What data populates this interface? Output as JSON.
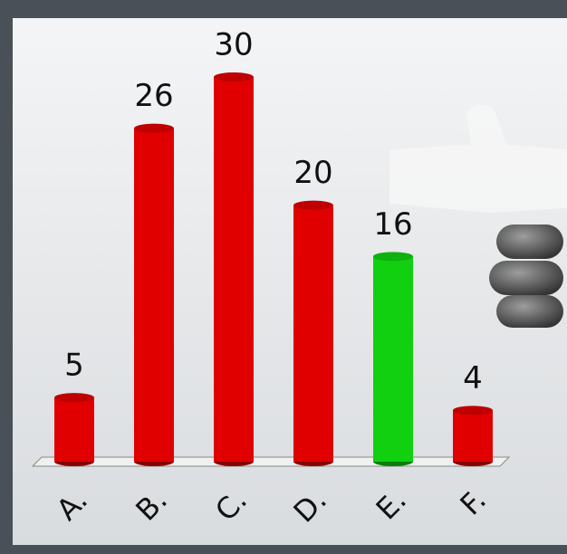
{
  "chart_data": {
    "type": "bar",
    "categories": [
      "A.",
      "B.",
      "C.",
      "D.",
      "E.",
      "F."
    ],
    "values": [
      5,
      26,
      30,
      20,
      16,
      4
    ],
    "colors": [
      "#e00000",
      "#e00000",
      "#e00000",
      "#e00000",
      "#10d010",
      "#e00000"
    ]
  }
}
